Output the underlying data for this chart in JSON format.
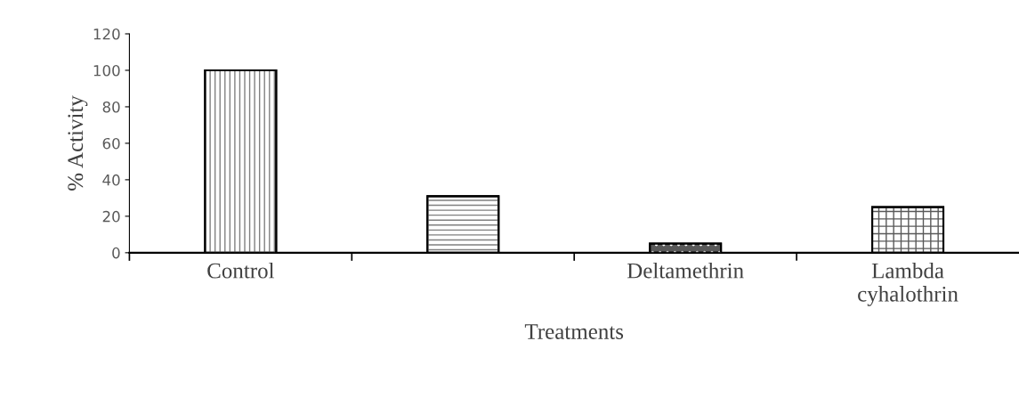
{
  "chart_data": {
    "type": "bar",
    "xlabel": "Treatments",
    "ylabel": "% Activity",
    "categories": [
      "Control",
      null,
      "Deltamethrin",
      "Lambda\ncyhalothrin"
    ],
    "values": [
      100,
      31,
      5,
      25
    ],
    "colors": [
      "#ffffff",
      "#ffffff",
      "#595959",
      "#ffffff"
    ],
    "ylim": [
      0,
      120
    ],
    "yticks": [
      0,
      20,
      40,
      60,
      80,
      100,
      120
    ],
    "grid": false
  }
}
